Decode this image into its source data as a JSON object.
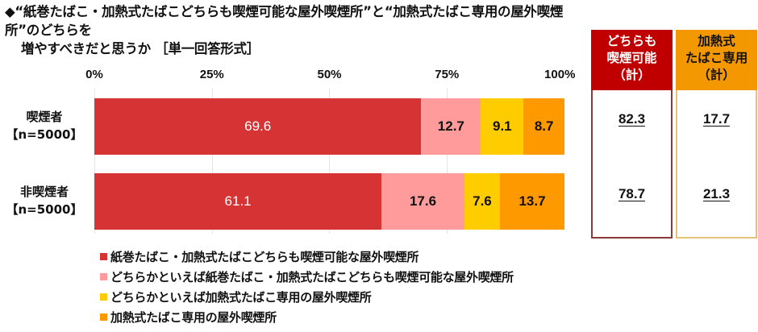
{
  "title": {
    "line1": "◆“紙巻たばこ・加熱式たばこどちらも喫煙可能な屋外喫煙所”と“加熱式たばこ専用の屋外喫煙所”のどちらを",
    "line2": "増やすべきだと思うか ［単一回答形式］"
  },
  "axis": {
    "ticks": [
      "0%",
      "25%",
      "50%",
      "75%",
      "100%"
    ]
  },
  "rows": [
    {
      "label": "喫煙者",
      "n": "【n=5000】"
    },
    {
      "label": "非喫煙者",
      "n": "【n=5000】"
    }
  ],
  "colors": {
    "series0": "#d63434",
    "series1": "#ff9b9b",
    "series2": "#ffcc00",
    "series3": "#ff9900",
    "summary_red": "#c00000",
    "summary_orange": "#f39800"
  },
  "summary": {
    "col1": {
      "line1": "どちらも",
      "line2": "喫煙可能",
      "line3": "（計）",
      "values": [
        "82.3",
        "78.7"
      ]
    },
    "col2": {
      "line1": "加熱式",
      "line2": "たばこ専用",
      "line3": "（計）",
      "values": [
        "17.7",
        "21.3"
      ]
    }
  },
  "legend": [
    "紙巻たばこ・加熱式たばこどちらも喫煙可能な屋外喫煙所",
    "どちらかといえば紙巻たばこ・加熱式たばこどちらも喫煙可能な屋外喫煙所",
    "どちらかといえば加熱式たばこ専用の屋外喫煙所",
    "加熱式たばこ専用の屋外喫煙所"
  ],
  "chart_data": {
    "type": "bar",
    "orientation": "horizontal",
    "stacked": true,
    "title": "“紙巻たばこ・加熱式たばこどちらも喫煙可能な屋外喫煙所”と“加熱式たばこ専用の屋外喫煙所”のどちらを増やすべきだと思うか ［単一回答形式］",
    "categories": [
      "喫煙者【n=5000】",
      "非喫煙者【n=5000】"
    ],
    "series": [
      {
        "name": "紙巻たばこ・加熱式たばこどちらも喫煙可能な屋外喫煙所",
        "values": [
          69.6,
          61.1
        ]
      },
      {
        "name": "どちらかといえば紙巻たばこ・加熱式たばこどちらも喫煙可能な屋外喫煙所",
        "values": [
          12.7,
          17.6
        ]
      },
      {
        "name": "どちらかといえば加熱式たばこ専用の屋外喫煙所",
        "values": [
          9.1,
          7.6
        ]
      },
      {
        "name": "加熱式たばこ専用の屋外喫煙所",
        "values": [
          8.7,
          13.7
        ]
      }
    ],
    "totals": {
      "どちらも喫煙可能（計）": [
        82.3,
        78.7
      ],
      "加熱式たばこ専用（計）": [
        17.7,
        21.3
      ]
    },
    "xlabel": "",
    "ylabel": "",
    "xlim": [
      0,
      100
    ],
    "xticks": [
      "0%",
      "25%",
      "50%",
      "75%",
      "100%"
    ],
    "legend_position": "bottom",
    "grid": true
  }
}
